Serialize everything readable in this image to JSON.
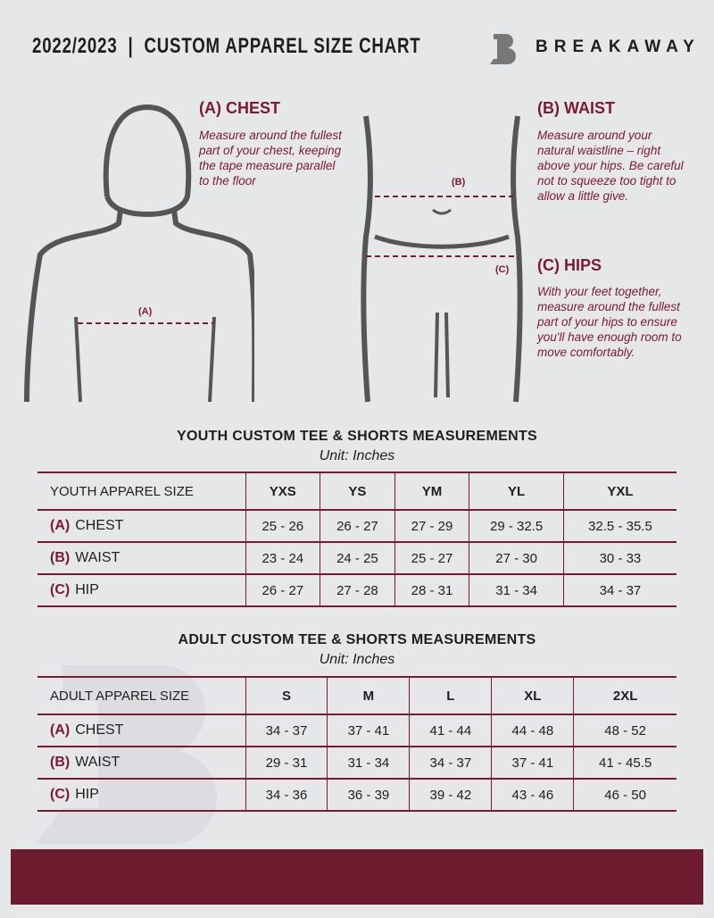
{
  "header": {
    "title": "2022/2023  |  CUSTOM APPAREL SIZE CHART",
    "brand": "BREAKAWAY",
    "logo_letter": "B"
  },
  "guide": {
    "chest": {
      "heading": "(A) CHEST",
      "text": "Measure around the fullest part of your chest, keeping the tape measure parallel to the floor",
      "marker": "(A)"
    },
    "waist": {
      "heading": "(B) WAIST",
      "text": "Measure around your natural waistline – right above your hips. Be careful not to squeeze too tight to allow a little give.",
      "marker": "(B)"
    },
    "hips": {
      "heading": "(C) HIPS",
      "text": "With your feet together, measure around the fullest part of your hips to ensure you'll have enough room to move comfortably.",
      "marker": "(C)"
    }
  },
  "youth": {
    "title": "YOUTH CUSTOM TEE & SHORTS MEASUREMENTS",
    "unit": "Unit: Inches",
    "size_label": "YOUTH APPAREL SIZE",
    "sizes": [
      "YXS",
      "YS",
      "YM",
      "YL",
      "YXL"
    ],
    "rows": [
      {
        "code": "(A)",
        "name": "CHEST",
        "values": [
          "25 - 26",
          "26 - 27",
          "27 - 29",
          "29 - 32.5",
          "32.5 - 35.5"
        ]
      },
      {
        "code": "(B)",
        "name": "WAIST",
        "values": [
          "23 - 24",
          "24 - 25",
          "25 - 27",
          "27 - 30",
          "30 - 33"
        ]
      },
      {
        "code": "(C)",
        "name": "HIP",
        "values": [
          "26 - 27",
          "27 - 28",
          "28 - 31",
          "31 - 34",
          "34 - 37"
        ]
      }
    ]
  },
  "adult": {
    "title": "ADULT CUSTOM TEE & SHORTS MEASUREMENTS",
    "unit": "Unit: Inches",
    "size_label": "ADULT APPAREL SIZE",
    "sizes": [
      "S",
      "M",
      "L",
      "XL",
      "2XL"
    ],
    "rows": [
      {
        "code": "(A)",
        "name": "CHEST",
        "values": [
          "34 - 37",
          "37 - 41",
          "41 - 44",
          "44 - 48",
          "48 - 52"
        ]
      },
      {
        "code": "(B)",
        "name": "WAIST",
        "values": [
          "29 - 31",
          "31 - 34",
          "34 - 37",
          "37 - 41",
          "41 - 45.5"
        ]
      },
      {
        "code": "(C)",
        "name": "HIP",
        "values": [
          "34 - 36",
          "36 - 39",
          "39 - 42",
          "43 - 46",
          "46 - 50"
        ]
      }
    ]
  },
  "colors": {
    "accent": "#7a1a30",
    "background": "#e6e7e9",
    "footer": "#6e1a2f"
  }
}
